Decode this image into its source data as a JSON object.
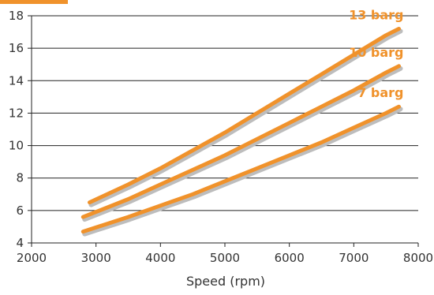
{
  "colors": {
    "accent": "#F0922B",
    "shadow": "#BDBDBD",
    "grid": "#222222",
    "axis": "#222222"
  },
  "chart_data": {
    "type": "line",
    "title": "",
    "xlabel": "Speed (rpm)",
    "ylabel": "",
    "xlim": [
      2000,
      8000
    ],
    "ylim": [
      4,
      18
    ],
    "xticks": [
      2000,
      3000,
      4000,
      5000,
      6000,
      7000,
      8000
    ],
    "yticks": [
      4,
      6,
      8,
      10,
      12,
      14,
      16,
      18
    ],
    "x_tick_labels": [
      "2000",
      "3000",
      "4000",
      "5000",
      "6000",
      "7000",
      "8000"
    ],
    "y_tick_labels": [
      "4",
      "6",
      "8",
      "10",
      "12",
      "14",
      "16",
      "18"
    ],
    "grid": "horizontal",
    "series": [
      {
        "name": "13 barg",
        "x": [
          2900,
          3500,
          4000,
          4500,
          5000,
          5500,
          6000,
          6500,
          7000,
          7500,
          7700
        ],
        "y": [
          6.5,
          7.6,
          8.6,
          9.7,
          10.8,
          12.0,
          13.2,
          14.4,
          15.6,
          16.8,
          17.2
        ]
      },
      {
        "name": "10 barg",
        "x": [
          2800,
          3500,
          4000,
          4500,
          5000,
          5500,
          6000,
          6500,
          7000,
          7500,
          7700
        ],
        "y": [
          5.6,
          6.7,
          7.6,
          8.5,
          9.4,
          10.4,
          11.4,
          12.4,
          13.4,
          14.5,
          14.9
        ]
      },
      {
        "name": "7 barg",
        "x": [
          2800,
          3500,
          4000,
          4500,
          5000,
          5500,
          6000,
          6500,
          7000,
          7500,
          7700
        ],
        "y": [
          4.7,
          5.6,
          6.3,
          7.0,
          7.8,
          8.6,
          9.4,
          10.2,
          11.1,
          12.0,
          12.4
        ]
      }
    ]
  }
}
